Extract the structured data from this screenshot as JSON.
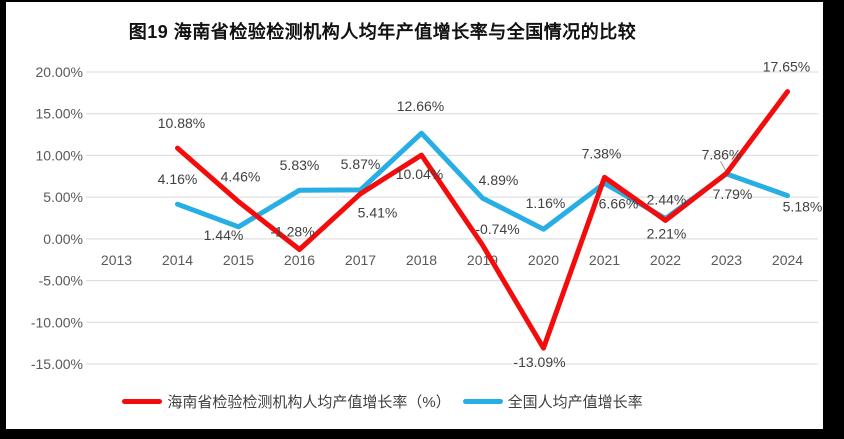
{
  "title": "图19  海南省检验检测机构人均年产值增长率与全国情况的比较",
  "chart_data": {
    "type": "line",
    "title": "图19  海南省检验检测机构人均年产值增长率与全国情况的比较",
    "categories": [
      "2013",
      "2014",
      "2015",
      "2016",
      "2017",
      "2018",
      "2019",
      "2020",
      "2021",
      "2022",
      "2023",
      "2024"
    ],
    "series": [
      {
        "name": "海南省检验检测机构人均产值增长率（%）",
        "color": "#f40b0b",
        "start_category": "2014",
        "values": [
          10.88,
          4.46,
          -1.28,
          5.41,
          10.04,
          -0.74,
          -13.09,
          7.38,
          2.21,
          7.86,
          17.65
        ],
        "point_labels": [
          "10.88%",
          "4.46%",
          "-1.28%",
          "5.41%",
          "10.04%",
          "-0.74%",
          "-13.09%",
          "7.38%",
          "2.21%",
          "7.86%",
          "17.65%"
        ]
      },
      {
        "name": "全国人均产值增长率",
        "color": "#27aee4",
        "start_category": "2014",
        "values": [
          4.16,
          1.44,
          5.83,
          5.87,
          12.66,
          4.89,
          1.16,
          6.66,
          2.44,
          7.79,
          5.18
        ],
        "point_labels": [
          "4.16%",
          "1.44%",
          "5.83%",
          "5.87%",
          "12.66%",
          "4.89%",
          "1.16%",
          "6.66%",
          "2.44%",
          "7.79%",
          "5.18%"
        ]
      }
    ],
    "ylim": [
      -15,
      20
    ],
    "ytick_values": [
      20,
      15,
      10,
      5,
      0,
      -5,
      -10,
      -15
    ],
    "ytick_labels": [
      "20.00%",
      "15.00%",
      "10.00%",
      "5.00%",
      "0.00%",
      "-5.00%",
      "-10.00%",
      "-15.00%"
    ],
    "grid": true,
    "legend_position": "bottom",
    "colors": {
      "gridline": "#d9d9d9",
      "axis_text": "#595959",
      "label_text": "#404040",
      "leader_line": "#999999",
      "frame": "#000000",
      "background": "#ffffff"
    }
  },
  "legend": {
    "items": [
      {
        "label": "海南省检验检测机构人均产值增长率（%）",
        "color": "#f40b0b"
      },
      {
        "label": "全国人均产值增长率",
        "color": "#27aee4"
      }
    ]
  }
}
